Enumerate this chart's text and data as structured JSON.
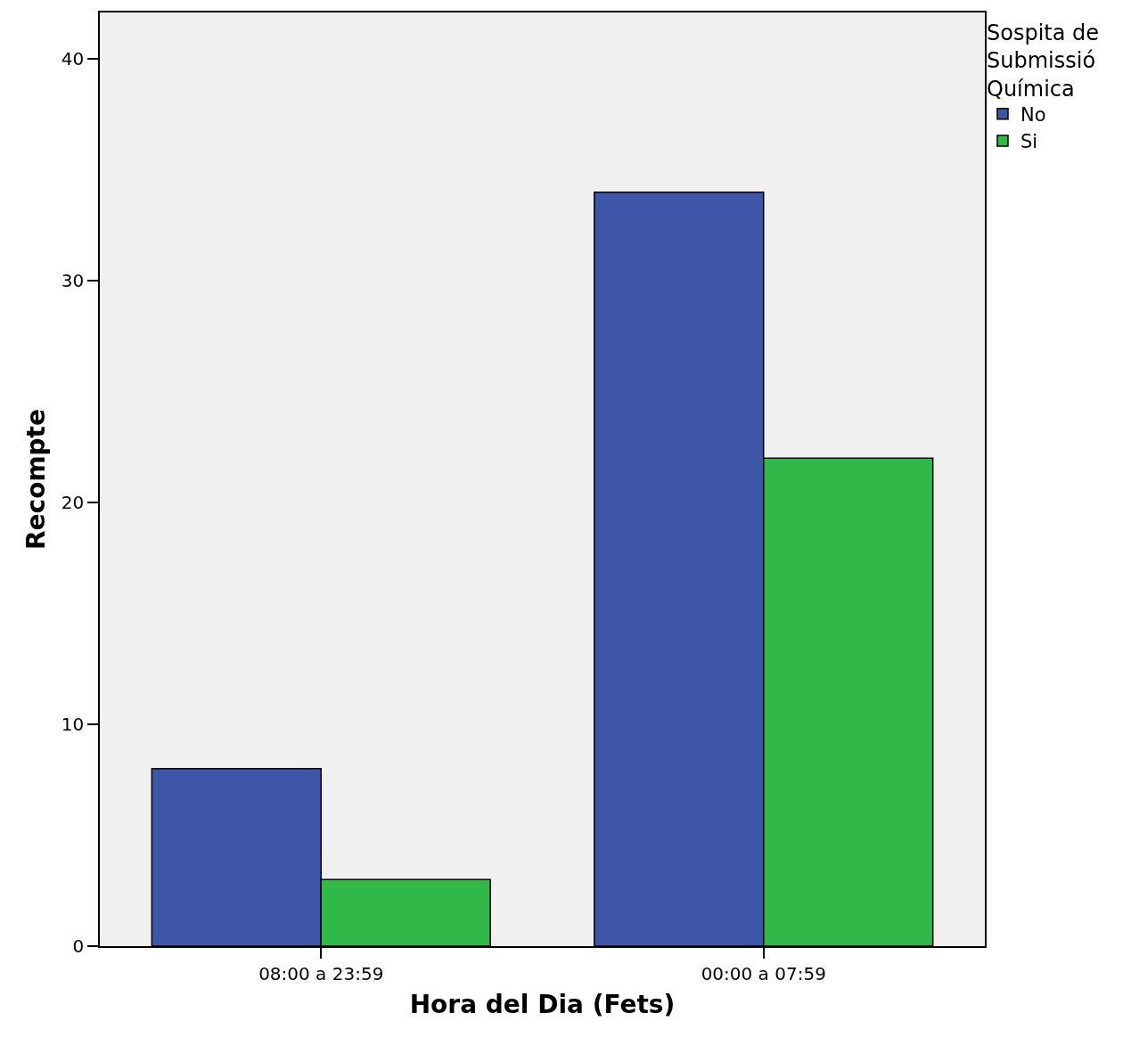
{
  "chart_data": {
    "type": "bar",
    "xlabel": "Hora del Dia (Fets)",
    "ylabel": "Recompte",
    "legend_title": "Sospita de\nSubmissió\nQuímica",
    "categories": [
      "08:00 a 23:59",
      "00:00 a 07:59"
    ],
    "series": [
      {
        "name": "No",
        "color": "#3d56a8",
        "values": [
          8,
          34
        ]
      },
      {
        "name": "Si",
        "color": "#30b848",
        "values": [
          3,
          22
        ]
      }
    ],
    "ylim": [
      0,
      42.1
    ],
    "yticks": [
      0,
      10,
      20,
      30,
      40
    ],
    "grid": false,
    "legend": "top right"
  }
}
